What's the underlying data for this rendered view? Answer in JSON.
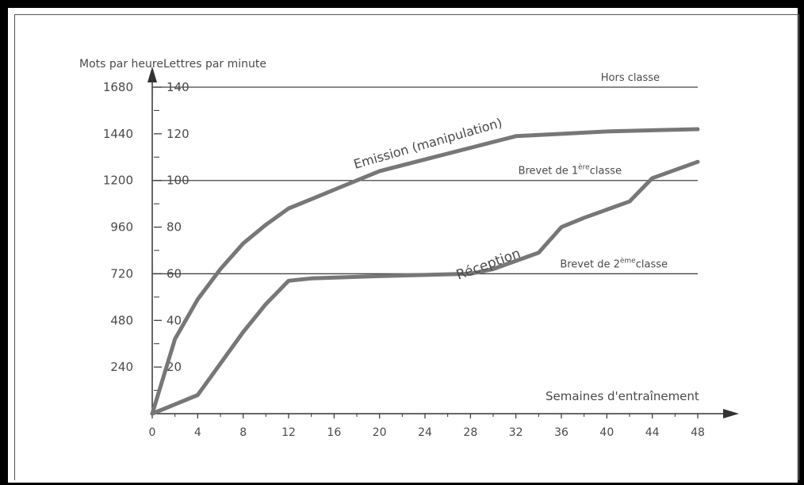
{
  "chart_data": {
    "type": "line",
    "xlabel": "Semaines d'entraînement",
    "ylabel_left": "Mots par heure",
    "ylabel_right": "Lettres par minute",
    "x_ticks": [
      0,
      4,
      8,
      12,
      16,
      20,
      24,
      28,
      32,
      36,
      40,
      44,
      48
    ],
    "y_ticks_lpm": [
      20,
      40,
      60,
      80,
      100,
      120,
      140
    ],
    "y_tick_labels_mph": [
      "240",
      "480",
      "720",
      "960",
      "1200",
      "1440",
      "1680"
    ],
    "xlim": [
      0,
      48
    ],
    "ylim": [
      0,
      140
    ],
    "series": [
      {
        "name": "Emission (manipulation)",
        "x": [
          0,
          2,
          4,
          6,
          8,
          10,
          12,
          14,
          16,
          18,
          20,
          24,
          28,
          32,
          36,
          40,
          44,
          48
        ],
        "y": [
          0,
          32,
          49,
          62,
          73,
          81,
          88,
          92,
          96,
          100,
          104,
          109,
          114,
          119,
          120,
          121,
          121.5,
          122
        ]
      },
      {
        "name": "Réception",
        "x": [
          0,
          4,
          8,
          10,
          12,
          14,
          20,
          28,
          30,
          34,
          36,
          38,
          42,
          44,
          48
        ],
        "y": [
          0,
          8,
          35,
          47,
          57,
          58,
          59,
          60,
          62,
          69,
          80,
          84,
          91,
          101,
          108
        ]
      }
    ],
    "reference_lines": [
      {
        "label": "Hors classe",
        "y": 140
      },
      {
        "label_main": "Brevet de 1",
        "label_sup": "ère",
        "label_end": "classe",
        "y": 100
      },
      {
        "label_main": "Brevet de 2",
        "label_sup": "ème",
        "label_end": "classe",
        "y": 60
      }
    ]
  },
  "colors": {
    "curve": "#777777",
    "axis": "#333333",
    "text": "#4a4a4a",
    "frame": "#000000"
  }
}
